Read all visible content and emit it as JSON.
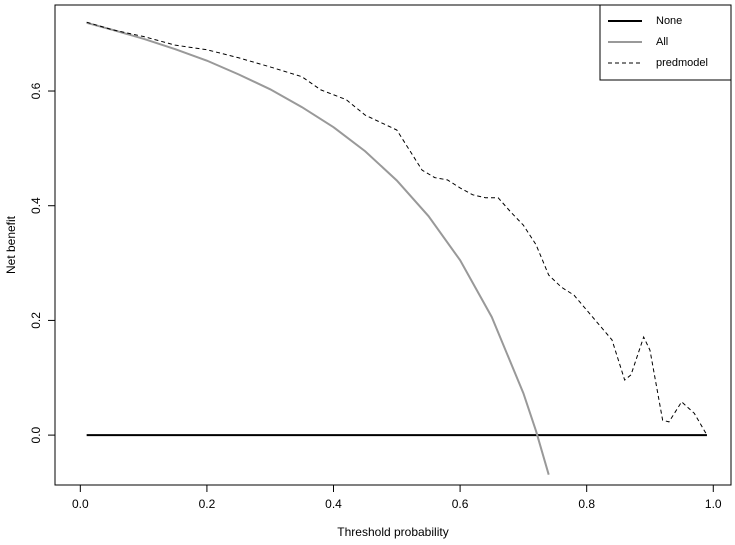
{
  "chart_data": {
    "type": "line",
    "xlabel": "Threshold probability",
    "ylabel": "Net benefit",
    "xlim": [
      -0.04,
      1.028
    ],
    "ylim": [
      -0.087,
      0.75
    ],
    "xticks": [
      {
        "value": 0,
        "label": "0.0"
      },
      {
        "value": 0.2,
        "label": "0.2"
      },
      {
        "value": 0.4,
        "label": "0.4"
      },
      {
        "value": 0.6,
        "label": "0.6"
      },
      {
        "value": 0.8,
        "label": "0.8"
      },
      {
        "value": 1,
        "label": "1.0"
      }
    ],
    "yticks": [
      {
        "value": 0,
        "label": "0.0"
      },
      {
        "value": 0.2,
        "label": "0.2"
      },
      {
        "value": 0.4,
        "label": "0.4"
      },
      {
        "value": 0.6,
        "label": "0.6"
      }
    ],
    "legend": "top-right",
    "series": [
      {
        "name": "None",
        "color": "#000000",
        "width": 2,
        "dashed": false,
        "x": [
          0.01,
          0.99
        ],
        "values": [
          0,
          0
        ]
      },
      {
        "name": "All",
        "color": "#999999",
        "width": 2,
        "dashed": false,
        "x": [
          0.01,
          0.05,
          0.1,
          0.15,
          0.2,
          0.25,
          0.3,
          0.35,
          0.4,
          0.45,
          0.5,
          0.55,
          0.6,
          0.65,
          0.7,
          0.72,
          0.74
        ],
        "values": [
          0.719,
          0.707,
          0.691,
          0.673,
          0.653,
          0.629,
          0.603,
          0.572,
          0.537,
          0.495,
          0.444,
          0.382,
          0.305,
          0.206,
          0.073,
          0.007,
          -0.069
        ]
      },
      {
        "name": "predmodel",
        "color": "#000000",
        "width": 1,
        "dashed": true,
        "x": [
          0.01,
          0.05,
          0.1,
          0.15,
          0.2,
          0.25,
          0.3,
          0.35,
          0.38,
          0.42,
          0.45,
          0.5,
          0.52,
          0.54,
          0.56,
          0.58,
          0.6,
          0.62,
          0.64,
          0.66,
          0.68,
          0.7,
          0.72,
          0.74,
          0.76,
          0.78,
          0.8,
          0.82,
          0.84,
          0.86,
          0.87,
          0.89,
          0.9,
          0.92,
          0.93,
          0.95,
          0.97,
          0.99
        ],
        "values": [
          0.72,
          0.707,
          0.695,
          0.68,
          0.672,
          0.658,
          0.642,
          0.625,
          0.602,
          0.585,
          0.558,
          0.532,
          0.497,
          0.462,
          0.449,
          0.445,
          0.431,
          0.419,
          0.414,
          0.414,
          0.389,
          0.366,
          0.332,
          0.279,
          0.258,
          0.244,
          0.218,
          0.192,
          0.166,
          0.096,
          0.105,
          0.171,
          0.148,
          0.026,
          0.023,
          0.058,
          0.038,
          0
        ]
      }
    ]
  }
}
